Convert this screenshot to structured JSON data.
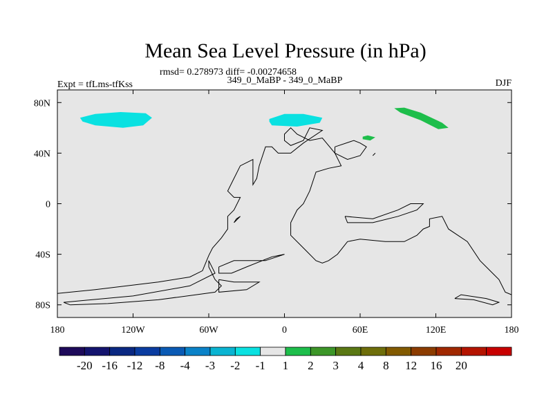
{
  "chart_data": {
    "type": "heatmap",
    "title": "Mean Sea Level Pressure (in hPa)",
    "stats_text": "rmsd= 0.278973 diff= -0.00274658",
    "comparison_text": "349_0_MaBP - 349_0_MaBP",
    "experiment_text": "Expt = tfLms-tfKss",
    "season": "DJF",
    "xlim": [
      -180,
      180
    ],
    "ylim": [
      -90,
      90
    ],
    "x_ticks": [
      {
        "value": -180,
        "label": "180"
      },
      {
        "value": -120,
        "label": "120W"
      },
      {
        "value": -60,
        "label": "60W"
      },
      {
        "value": 0,
        "label": "0"
      },
      {
        "value": 60,
        "label": "60E"
      },
      {
        "value": 120,
        "label": "120E"
      },
      {
        "value": 180,
        "label": "180"
      }
    ],
    "y_ticks": [
      {
        "value": 80,
        "label": "80N"
      },
      {
        "value": 40,
        "label": "40N"
      },
      {
        "value": 0,
        "label": "0"
      },
      {
        "value": -40,
        "label": "40S"
      },
      {
        "value": -80,
        "label": "80S"
      }
    ],
    "background_color": "#e6e6e6",
    "colorbar": {
      "colors": [
        "#1e0a5a",
        "#14146e",
        "#0a2882",
        "#0a3ca0",
        "#0a5ab4",
        "#0a82c8",
        "#0ab4d2",
        "#0ae1e1",
        "#e6e6e6",
        "#1ebe4b",
        "#3c9628",
        "#5a7814",
        "#6e6e0a",
        "#825a00",
        "#8c3c00",
        "#a02800",
        "#b41400",
        "#c80000"
      ],
      "labels": [
        "-20",
        "-16",
        "-12",
        "-8",
        "-4",
        "-3",
        "-2",
        "-1",
        "1",
        "2",
        "3",
        "4",
        "8",
        "12",
        "16",
        "20"
      ]
    },
    "anomaly_regions": [
      {
        "name": "north-pacific-negative",
        "range": "-2 to -1",
        "color": "#0ae1e1",
        "points": [
          [
            -162,
            68
          ],
          [
            -150,
            71
          ],
          [
            -130,
            72.5
          ],
          [
            -110,
            71.5
          ],
          [
            -105,
            68
          ],
          [
            -112,
            62
          ],
          [
            -128,
            60
          ],
          [
            -150,
            62
          ],
          [
            -160,
            65
          ]
        ]
      },
      {
        "name": "north-atlantic-negative",
        "range": "-2 to -1",
        "color": "#0ae1e1",
        "points": [
          [
            -12,
            67
          ],
          [
            0,
            71
          ],
          [
            15,
            71
          ],
          [
            30,
            68
          ],
          [
            28,
            64
          ],
          [
            10,
            61
          ],
          [
            -10,
            62
          ],
          [
            -12,
            65
          ]
        ]
      },
      {
        "name": "siberia-positive",
        "range": "1 to 2",
        "color": "#1ebe4b",
        "points": [
          [
            87,
            75.5
          ],
          [
            95,
            76
          ],
          [
            108,
            72
          ],
          [
            125,
            64
          ],
          [
            130,
            60
          ],
          [
            122,
            59
          ],
          [
            108,
            66
          ],
          [
            92,
            72
          ]
        ]
      },
      {
        "name": "central-asia-positive",
        "range": "1 to 2",
        "color": "#1ebe4b",
        "points": [
          [
            62,
            53
          ],
          [
            66,
            54
          ],
          [
            72,
            52.5
          ],
          [
            68,
            50
          ],
          [
            62,
            51
          ]
        ]
      }
    ],
    "coastlines": [
      [
        [
          -180,
          -71
        ],
        [
          -150,
          -68
        ],
        [
          -100,
          -62
        ],
        [
          -75,
          -58
        ],
        [
          -65,
          -53
        ],
        [
          -60,
          -41
        ],
        [
          -57,
          -35
        ],
        [
          -50,
          -27
        ],
        [
          -45,
          -20
        ],
        [
          -45,
          -10
        ],
        [
          -40,
          -5
        ],
        [
          -35,
          5
        ],
        [
          -40,
          5
        ],
        [
          -45,
          10
        ],
        [
          -40,
          20
        ],
        [
          -35,
          30
        ],
        [
          -25,
          35
        ],
        [
          -25,
          15
        ],
        [
          -22,
          20
        ],
        [
          -20,
          30
        ],
        [
          -15,
          45
        ],
        [
          -10,
          45
        ],
        [
          -5,
          40
        ],
        [
          5,
          40
        ],
        [
          15,
          48
        ],
        [
          30,
          58
        ],
        [
          20,
          60
        ],
        [
          15,
          50
        ],
        [
          5,
          46
        ],
        [
          0,
          50
        ],
        [
          0,
          55
        ],
        [
          5,
          60
        ],
        [
          10,
          55
        ],
        [
          20,
          50
        ],
        [
          30,
          52
        ],
        [
          40,
          40
        ],
        [
          45,
          30
        ],
        [
          35,
          28
        ],
        [
          25,
          25
        ],
        [
          20,
          10
        ],
        [
          15,
          0
        ],
        [
          10,
          -5
        ],
        [
          5,
          -15
        ],
        [
          5,
          -25
        ],
        [
          15,
          -35
        ],
        [
          25,
          -45
        ],
        [
          30,
          -47
        ],
        [
          35,
          -45
        ],
        [
          42,
          -40
        ],
        [
          50,
          -30
        ],
        [
          60,
          -28
        ],
        [
          80,
          -30
        ],
        [
          95,
          -30
        ],
        [
          105,
          -25
        ],
        [
          110,
          -20
        ],
        [
          115,
          -18
        ],
        [
          115,
          -12
        ],
        [
          125,
          -10
        ],
        [
          130,
          -20
        ],
        [
          145,
          -30
        ],
        [
          155,
          -45
        ],
        [
          165,
          -55
        ],
        [
          170,
          -60
        ],
        [
          175,
          -70
        ],
        [
          180,
          -72
        ]
      ],
      [
        [
          -170,
          -80
        ],
        [
          -140,
          -79
        ],
        [
          -100,
          -76
        ],
        [
          -70,
          -72
        ],
        [
          -55,
          -70
        ],
        [
          -50,
          -65
        ],
        [
          -55,
          -60
        ],
        [
          -60,
          -50
        ],
        [
          -60,
          -45
        ],
        [
          -55,
          -55
        ],
        [
          -75,
          -65
        ],
        [
          -120,
          -73
        ],
        [
          -175,
          -78
        ],
        [
          -170,
          -80
        ]
      ],
      [
        [
          -52,
          -50
        ],
        [
          -40,
          -45
        ],
        [
          -15,
          -45
        ],
        [
          0,
          -40
        ],
        [
          -10,
          -42
        ],
        [
          -30,
          -50
        ],
        [
          -42,
          -55
        ],
        [
          -52,
          -55
        ],
        [
          -52,
          -50
        ]
      ],
      [
        [
          -52,
          -60
        ],
        [
          -40,
          -62
        ],
        [
          -20,
          -62
        ],
        [
          -30,
          -68
        ],
        [
          -52,
          -70
        ],
        [
          -52,
          -60
        ]
      ],
      [
        [
          -40,
          -15
        ],
        [
          -35,
          -10
        ],
        [
          -38,
          -12
        ],
        [
          -40,
          -15
        ]
      ],
      [
        [
          48,
          -10
        ],
        [
          70,
          -12
        ],
        [
          90,
          -5
        ],
        [
          100,
          0
        ],
        [
          110,
          0
        ],
        [
          105,
          -5
        ],
        [
          90,
          -10
        ],
        [
          70,
          -15
        ],
        [
          50,
          -15
        ],
        [
          48,
          -10
        ]
      ],
      [
        [
          40,
          45
        ],
        [
          55,
          50
        ],
        [
          60,
          48
        ],
        [
          65,
          45
        ],
        [
          60,
          38
        ],
        [
          50,
          35
        ],
        [
          40,
          40
        ],
        [
          40,
          45
        ]
      ],
      [
        [
          70,
          38
        ],
        [
          72,
          40
        ],
        [
          70,
          38
        ]
      ],
      [
        [
          135,
          -75
        ],
        [
          150,
          -76
        ],
        [
          165,
          -80
        ],
        [
          170,
          -78
        ],
        [
          160,
          -75
        ],
        [
          140,
          -72
        ],
        [
          135,
          -75
        ]
      ]
    ]
  }
}
